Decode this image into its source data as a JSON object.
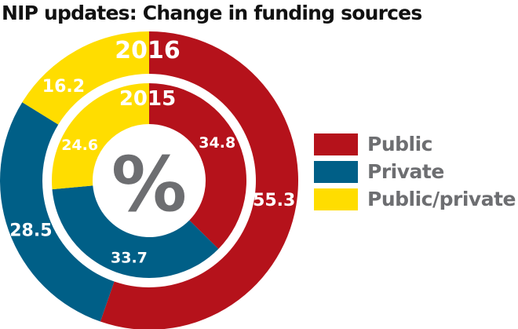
{
  "chart_data": {
    "type": "pie",
    "title": "NIP updates: Change in funding sources",
    "center_label": "%",
    "categories": [
      "Public",
      "Private",
      "Public/private"
    ],
    "colors": [
      "#b5121b",
      "#005f87",
      "#ffdd00"
    ],
    "rings": [
      {
        "name": "2016",
        "values": [
          55.3,
          28.5,
          16.2
        ],
        "labels": [
          "55.3",
          "28.5",
          "16.2"
        ]
      },
      {
        "name": "2015",
        "values": [
          34.8,
          33.7,
          24.6
        ],
        "labels": [
          "34.8",
          "33.7",
          "24.6"
        ]
      }
    ],
    "legend": "right"
  }
}
